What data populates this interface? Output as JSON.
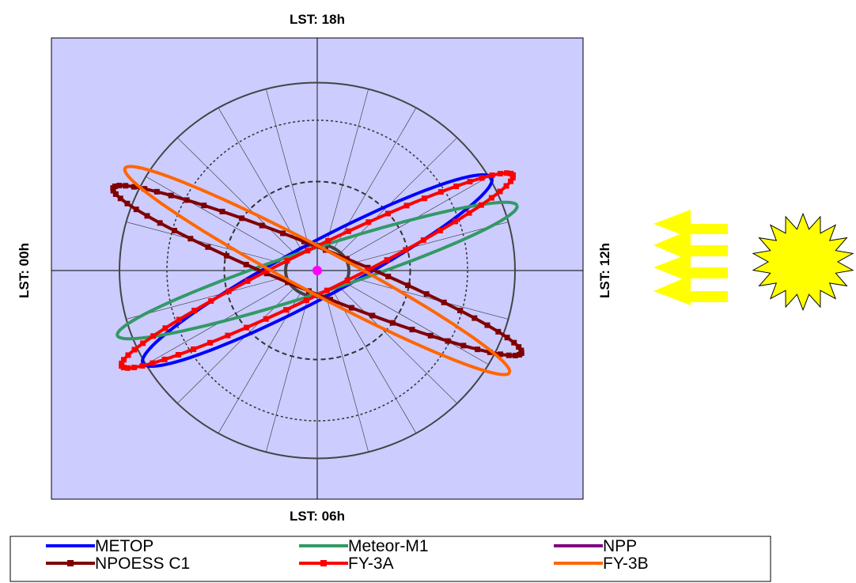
{
  "chart_data": {
    "type": "polar-orbit-diagram",
    "labels": {
      "top": "LST: 18h",
      "bottom": "LST: 06h",
      "left": "LST: 00h",
      "right": "LST: 12h"
    },
    "background_color": "#ccccff",
    "center_marker_color": "#ff00ff",
    "sun_color": "#ffff00",
    "spokes": 24,
    "grid": true,
    "legend_position": "bottom",
    "series": [
      {
        "name": "METOP",
        "color": "#0000ff",
        "marker": "none",
        "orbit_tilt_deg": -28.0,
        "orbit_semi_major": 0.78,
        "orbit_semi_minor": 0.07
      },
      {
        "name": "Meteor-M1",
        "color": "#339966",
        "marker": "none",
        "orbit_tilt_deg": -18.0,
        "orbit_semi_major": 0.83,
        "orbit_semi_minor": 0.05
      },
      {
        "name": "NPP",
        "color": "#800080",
        "marker": "none",
        "orbit_tilt_deg": 0.0,
        "orbit_semi_major": 0.0,
        "orbit_semi_minor": 0.0
      },
      {
        "name": "NPOESS C1",
        "color": "#800000",
        "marker": "square",
        "orbit_tilt_deg": 22.0,
        "orbit_semi_major": 0.87,
        "orbit_semi_minor": 0.05
      },
      {
        "name": "FY-3A",
        "color": "#ff0000",
        "marker": "square",
        "orbit_tilt_deg": -26.0,
        "orbit_semi_major": 0.86,
        "orbit_semi_minor": 0.05
      },
      {
        "name": "FY-3B",
        "color": "#ff6600",
        "marker": "none",
        "orbit_tilt_deg": 28.0,
        "orbit_semi_major": 0.86,
        "orbit_semi_minor": 0.05
      }
    ]
  }
}
